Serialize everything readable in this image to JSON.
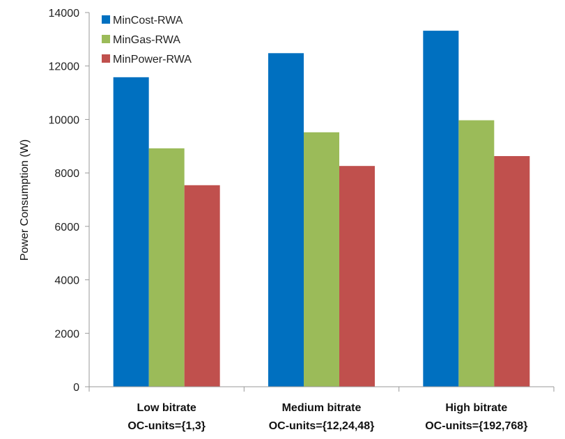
{
  "chart_data": {
    "type": "bar",
    "title": "",
    "ylabel": "Power Consumption (W)",
    "xlabel": "",
    "ylim": [
      0,
      14000
    ],
    "yticks": [
      0,
      2000,
      4000,
      6000,
      8000,
      10000,
      12000,
      14000
    ],
    "categories": [
      [
        "Low bitrate",
        "OC-units={1,3}"
      ],
      [
        "Medium bitrate",
        "OC-units={12,24,48}"
      ],
      [
        "High bitrate",
        "OC-units={192,768}"
      ]
    ],
    "series": [
      {
        "name": "MinCost-RWA",
        "color": "#0070c0",
        "values": [
          11580,
          12480,
          13320
        ]
      },
      {
        "name": "MinGas-RWA",
        "color": "#9bbb59",
        "values": [
          8920,
          9520,
          9970
        ]
      },
      {
        "name": "MinPower-RWA",
        "color": "#c0504d",
        "values": [
          7540,
          8260,
          8630
        ]
      }
    ],
    "legend_position": "top-left",
    "grid": false
  }
}
